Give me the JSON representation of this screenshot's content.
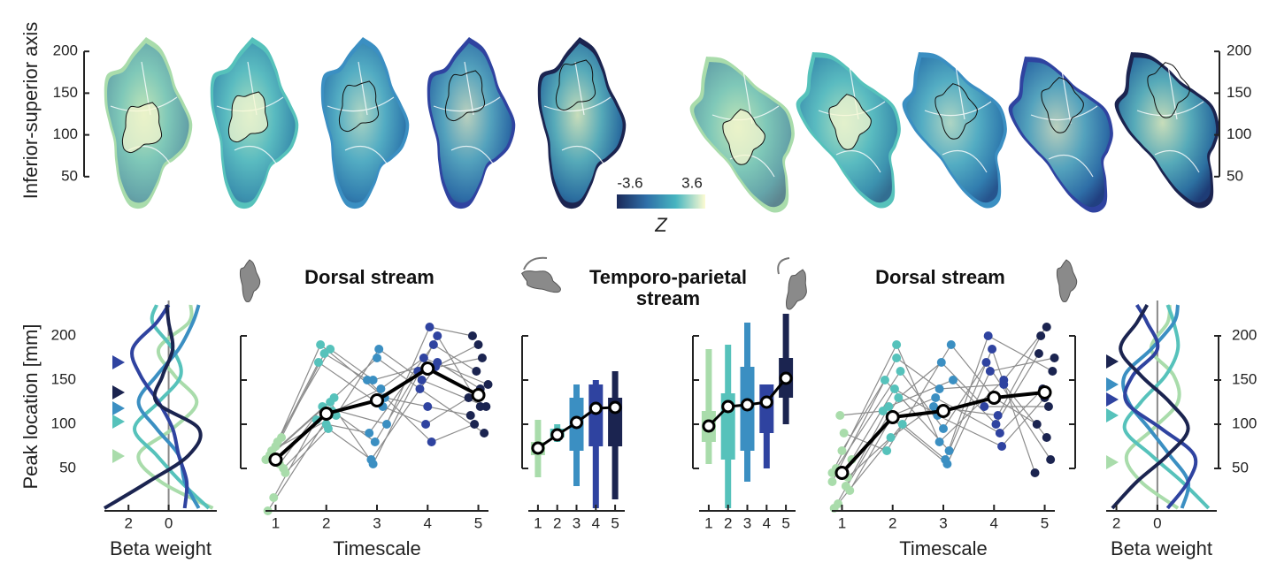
{
  "chart_data": [
    {
      "type": "map",
      "ylabel": "Inferior-superior axis",
      "ylim": [
        35,
        215
      ],
      "yticks": [
        50,
        100,
        150,
        200
      ],
      "colors": [
        "#a9dcab",
        "#56c2bb",
        "#3b8fc2",
        "#2f43a0",
        "#1b2450"
      ],
      "colorbar": {
        "lim": [
          -3.6,
          3.6
        ],
        "label": "Z",
        "colors": [
          "#1b2a5a",
          "#2f6fa8",
          "#47b5c0",
          "#fdfbd2"
        ]
      }
    },
    {
      "type": "profile",
      "ylabel": "Peak location [mm]",
      "xlabel": "Beta weight",
      "xlim": [
        3.2,
        -2.4
      ],
      "xticks": [
        2,
        0
      ],
      "ylim": [
        -10,
        240
      ],
      "yticks": [
        50,
        100,
        150,
        200
      ],
      "y": [
        5,
        35,
        65,
        95,
        125,
        155,
        185,
        215,
        235
      ],
      "series": [
        {
          "color": "#a9dcab",
          "peak": 64,
          "values": [
            -2.2,
            0.4,
            1.5,
            -0.2,
            -1.4,
            -0.3,
            0.5,
            -1.0,
            -1.1
          ]
        },
        {
          "color": "#56c2bb",
          "peak": 103,
          "values": [
            -2.0,
            -0.6,
            0.6,
            1.7,
            0.5,
            -0.6,
            -0.2,
            0.8,
            0.6
          ]
        },
        {
          "color": "#3b8fc2",
          "peak": 118,
          "values": [
            -1.5,
            -0.8,
            -0.5,
            0.6,
            1.5,
            0.6,
            -0.5,
            -1.2,
            -1.5
          ]
        },
        {
          "color": "#2f43a0",
          "peak": 170,
          "values": [
            -0.8,
            -0.9,
            -0.5,
            -0.2,
            0.5,
            1.4,
            1.8,
            0.6,
            0.0
          ]
        },
        {
          "color": "#1b2450",
          "peak": 136,
          "values": [
            3.2,
            1.0,
            -1.0,
            -1.5,
            0.6,
            0.3,
            -0.2,
            0.0,
            0.1
          ]
        }
      ]
    },
    {
      "type": "scatter",
      "title": "Dorsal stream",
      "xlabel": "Timescale",
      "x": [
        1,
        2,
        3,
        4,
        5
      ],
      "xlim": [
        0.8,
        5.2
      ],
      "xticks": [
        1,
        2,
        3,
        4,
        5
      ],
      "ylim": [
        -10,
        240
      ],
      "yticks": [
        50,
        100,
        150,
        200
      ],
      "colors": [
        "#a9dcab",
        "#56c2bb",
        "#3b8fc2",
        "#2f43a0",
        "#1b2450"
      ],
      "subjects": [
        [
          60,
          185,
          150,
          170,
          140
        ],
        [
          55,
          120,
          100,
          210,
          200
        ],
        [
          70,
          110,
          185,
          150,
          120
        ],
        [
          45,
          95,
          60,
          165,
          190
        ],
        [
          80,
          190,
          130,
          120,
          110
        ],
        [
          65,
          130,
          175,
          140,
          90
        ],
        [
          50,
          100,
          90,
          190,
          160
        ],
        [
          75,
          170,
          120,
          100,
          130
        ],
        [
          2,
          115,
          80,
          160,
          175
        ],
        [
          85,
          180,
          150,
          80,
          100
        ],
        [
          17,
          105,
          140,
          175,
          145
        ],
        [
          60,
          125,
          55,
          200,
          120
        ]
      ],
      "mean": [
        60,
        112,
        127,
        163,
        133
      ]
    },
    {
      "type": "box",
      "title": "Temporo-parietal stream",
      "x": [
        1,
        2,
        3,
        4,
        5
      ],
      "xlim": [
        0.5,
        5.5
      ],
      "xticks": [
        1,
        2,
        3,
        4,
        5
      ],
      "ylim": [
        -10,
        240
      ],
      "yticks": [
        50,
        100,
        150,
        200
      ],
      "colors": [
        "#a9dcab",
        "#56c2bb",
        "#3b8fc2",
        "#2f43a0",
        "#1b2450"
      ],
      "boxes": [
        {
          "whislo": 40,
          "q1": 65,
          "med": 73,
          "q3": 80,
          "whishi": 105
        },
        {
          "whislo": 80,
          "q1": 85,
          "med": 88,
          "q3": 95,
          "whishi": 100
        },
        {
          "whislo": 30,
          "q1": 70,
          "med": 102,
          "q3": 130,
          "whishi": 145
        },
        {
          "whislo": 5,
          "q1": 75,
          "med": 118,
          "q3": 145,
          "whishi": 150
        },
        {
          "whislo": 15,
          "q1": 75,
          "med": 119,
          "q3": 130,
          "whishi": 160
        }
      ]
    },
    {
      "type": "box",
      "x": [
        1,
        2,
        3,
        4,
        5
      ],
      "xlim": [
        0.5,
        5.5
      ],
      "xticks": [
        1,
        2,
        3,
        4,
        5
      ],
      "ylim": [
        -10,
        240
      ],
      "yticks": [
        50,
        100,
        150,
        200
      ],
      "colors": [
        "#a9dcab",
        "#56c2bb",
        "#3b8fc2",
        "#2f43a0",
        "#1b2450"
      ],
      "boxes": [
        {
          "whislo": 55,
          "q1": 80,
          "med": 98,
          "q3": 115,
          "whishi": 185
        },
        {
          "whislo": 5,
          "q1": 60,
          "med": 120,
          "q3": 135,
          "whishi": 190
        },
        {
          "whislo": 35,
          "q1": 70,
          "med": 122,
          "q3": 165,
          "whishi": 215
        },
        {
          "whislo": 50,
          "q1": 90,
          "med": 125,
          "q3": 145,
          "whishi": 145
        },
        {
          "whislo": 100,
          "q1": 130,
          "med": 152,
          "q3": 175,
          "whishi": 225
        }
      ]
    },
    {
      "type": "scatter",
      "title": "Dorsal stream",
      "xlabel": "Timescale",
      "x": [
        1,
        2,
        3,
        4,
        5
      ],
      "xlim": [
        0.8,
        5.2
      ],
      "xticks": [
        1,
        2,
        3,
        4,
        5
      ],
      "ylim": [
        -10,
        240
      ],
      "yticks": [
        50,
        100,
        150,
        200
      ],
      "colors": [
        "#a9dcab",
        "#56c2bb",
        "#3b8fc2",
        "#2f43a0",
        "#1b2450"
      ],
      "subjects": [
        [
          45,
          190,
          80,
          150,
          210
        ],
        [
          30,
          120,
          150,
          100,
          180
        ],
        [
          10,
          100,
          60,
          200,
          160
        ],
        [
          60,
          140,
          110,
          75,
          130
        ],
        [
          90,
          70,
          190,
          130,
          100
        ],
        [
          50,
          160,
          95,
          170,
          60
        ],
        [
          25,
          110,
          130,
          90,
          140
        ],
        [
          70,
          150,
          70,
          185,
          45
        ],
        [
          5,
          130,
          170,
          120,
          120
        ],
        [
          40,
          85,
          120,
          110,
          200
        ],
        [
          110,
          115,
          55,
          160,
          175
        ],
        [
          35,
          175,
          140,
          145,
          85
        ]
      ],
      "mean": [
        45,
        108,
        115,
        130,
        136
      ]
    },
    {
      "type": "profile",
      "xlabel": "Beta weight",
      "xlim": [
        2.5,
        -2.9
      ],
      "xticks": [
        2,
        0
      ],
      "ylim": [
        -10,
        240
      ],
      "yticks": [
        50,
        100,
        150,
        200
      ],
      "y": [
        5,
        35,
        65,
        95,
        125,
        155,
        185,
        215,
        235
      ],
      "series": [
        {
          "color": "#a9dcab",
          "peak": 57,
          "values": [
            -1.0,
            0.8,
            1.5,
            0.2,
            -1.0,
            -0.8,
            0.3,
            -0.5,
            -0.6
          ]
        },
        {
          "color": "#56c2bb",
          "peak": 110,
          "values": [
            -2.5,
            -1.2,
            0.3,
            1.6,
            0.8,
            -0.4,
            -1.0,
            -0.8,
            -0.5
          ]
        },
        {
          "color": "#3b8fc2",
          "peak": 145,
          "values": [
            -1.2,
            -1.5,
            -0.6,
            0.4,
            1.4,
            1.6,
            0.3,
            -0.8,
            -1.0
          ]
        },
        {
          "color": "#2f43a0",
          "peak": 128,
          "values": [
            -0.5,
            -1.5,
            -1.8,
            -0.2,
            1.5,
            1.2,
            0.0,
            0.5,
            1.0
          ]
        },
        {
          "color": "#1b2450",
          "peak": 171,
          "values": [
            2.2,
            1.0,
            -0.5,
            -1.5,
            -0.6,
            0.8,
            1.8,
            1.0,
            0.5
          ]
        }
      ]
    }
  ]
}
